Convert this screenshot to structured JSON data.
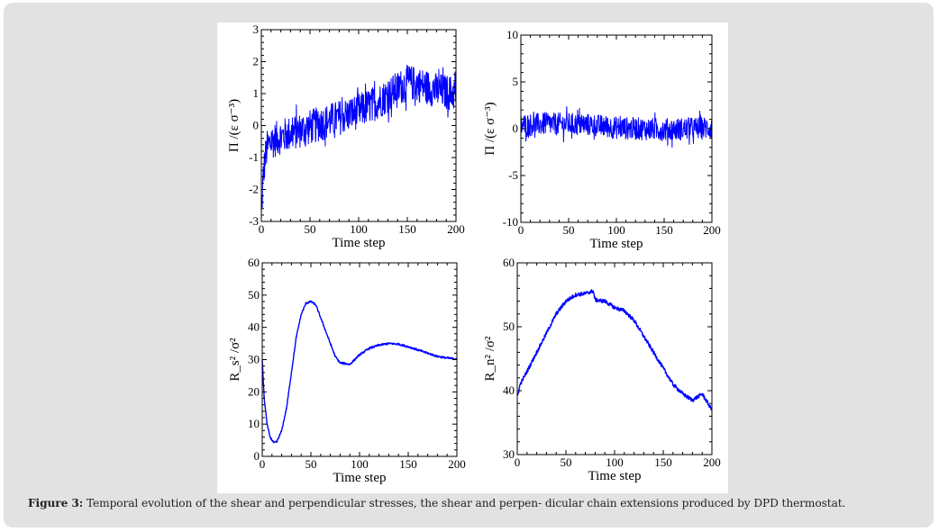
{
  "caption": {
    "label": "Figure 3:",
    "text": " Temporal evolution of the shear and perpendicular stresses, the shear and perpen- dicular chain extensions produced by DPD thermostat."
  },
  "chart_data": [
    {
      "id": "shear-stress",
      "type": "line",
      "title": "",
      "xlabel": "Time step",
      "ylabel": "Π /(ε σ⁻³)",
      "xlim": [
        0,
        200
      ],
      "ylim": [
        -3,
        3
      ],
      "xticks": [
        0,
        50,
        100,
        150,
        200
      ],
      "yticks": [
        -3,
        -2,
        -1,
        0,
        1,
        2,
        3
      ],
      "color": "#0000ff",
      "noisy": true,
      "noise_amplitude": 0.55,
      "series": [
        {
          "name": "shear stress",
          "x": [
            0,
            1,
            2,
            4,
            6,
            10,
            20,
            30,
            40,
            50,
            60,
            70,
            80,
            90,
            100,
            110,
            120,
            130,
            140,
            150,
            160,
            170,
            180,
            190,
            200
          ],
          "values": [
            -2.9,
            -2.2,
            -1.6,
            -1.0,
            -0.7,
            -0.5,
            -0.35,
            -0.25,
            -0.15,
            -0.05,
            0.05,
            0.15,
            0.25,
            0.35,
            0.45,
            0.6,
            0.75,
            0.95,
            1.15,
            1.35,
            1.3,
            1.2,
            1.1,
            1.05,
            1.0
          ]
        }
      ]
    },
    {
      "id": "perpendicular-stress",
      "type": "line",
      "title": "",
      "xlabel": "Time step",
      "ylabel": "Π /(ε σ⁻³)",
      "xlim": [
        0,
        200
      ],
      "ylim": [
        -10,
        10
      ],
      "xticks": [
        0,
        50,
        100,
        150,
        200
      ],
      "yticks": [
        -10,
        -5,
        0,
        5,
        10
      ],
      "color": "#0000ff",
      "noisy": true,
      "noise_amplitude": 1.2,
      "series": [
        {
          "name": "perpendicular stress",
          "x": [
            0,
            25,
            50,
            75,
            100,
            125,
            150,
            175,
            200
          ],
          "values": [
            0.4,
            0.5,
            0.5,
            0.4,
            0.1,
            0.0,
            -0.1,
            0.0,
            0.1
          ]
        }
      ]
    },
    {
      "id": "shear-extension",
      "type": "line",
      "title": "",
      "xlabel": "Time step",
      "ylabel": "R_s² /σ²",
      "xlim": [
        0,
        200
      ],
      "ylim": [
        0,
        60
      ],
      "xticks": [
        0,
        50,
        100,
        150,
        200
      ],
      "yticks": [
        0,
        10,
        20,
        30,
        40,
        50,
        60
      ],
      "color": "#0000ff",
      "noisy": true,
      "noise_amplitude": 0.3,
      "series": [
        {
          "name": "shear chain extension",
          "x": [
            0,
            2,
            5,
            8,
            12,
            15,
            20,
            25,
            30,
            35,
            40,
            45,
            50,
            55,
            60,
            65,
            70,
            75,
            80,
            85,
            90,
            95,
            100,
            110,
            120,
            130,
            140,
            150,
            160,
            170,
            180,
            190,
            200
          ],
          "values": [
            30,
            18,
            10,
            6,
            4.2,
            4.5,
            8,
            15,
            26,
            37,
            44,
            47.5,
            48,
            47,
            43,
            39,
            35,
            31,
            29,
            28.8,
            28.5,
            30,
            31.5,
            33.5,
            34.5,
            35,
            34.8,
            34,
            33,
            32,
            31,
            30.5,
            30.2
          ]
        }
      ]
    },
    {
      "id": "perpendicular-extension",
      "type": "line",
      "title": "",
      "xlabel": "Time step",
      "ylabel": "R_n² /σ²",
      "xlim": [
        0,
        200
      ],
      "ylim": [
        30,
        60
      ],
      "xticks": [
        0,
        50,
        100,
        150,
        200
      ],
      "yticks": [
        30,
        40,
        50,
        60
      ],
      "color": "#0000ff",
      "noisy": true,
      "noise_amplitude": 0.3,
      "series": [
        {
          "name": "perpendicular chain extension",
          "x": [
            0,
            3,
            10,
            20,
            30,
            40,
            50,
            60,
            70,
            78,
            80,
            90,
            100,
            110,
            120,
            130,
            140,
            150,
            160,
            170,
            180,
            190,
            200
          ],
          "values": [
            39,
            41,
            43,
            46,
            49,
            52,
            54,
            55,
            55.2,
            55.6,
            54.2,
            54,
            53,
            52.5,
            51,
            48.5,
            46,
            43.5,
            41,
            39.5,
            38.5,
            39.5,
            37
          ]
        }
      ]
    }
  ]
}
